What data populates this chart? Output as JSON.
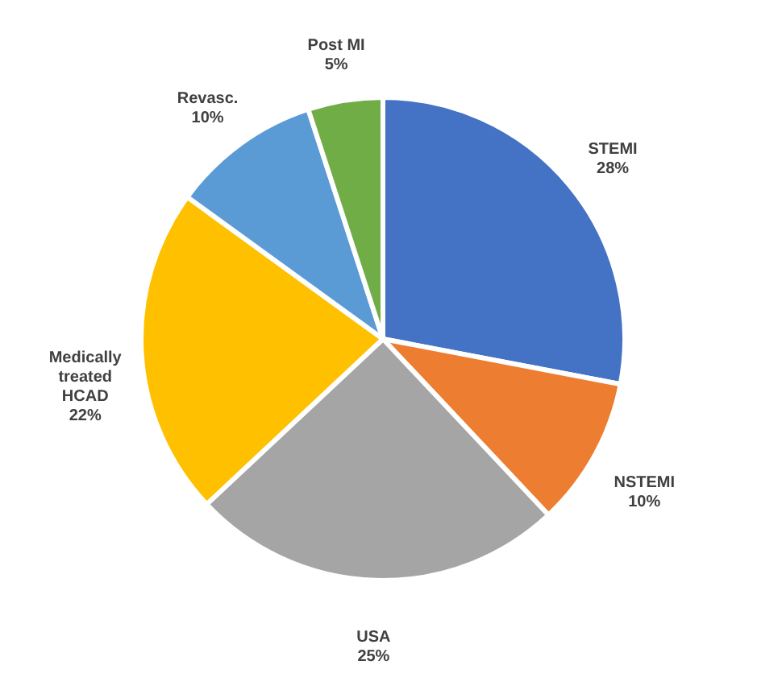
{
  "chart_data": {
    "type": "pie",
    "categories": [
      "STEMI",
      "NSTEMI",
      "USA",
      "Medically treated HCAD",
      "Revasc.",
      "Post MI"
    ],
    "values": [
      28,
      10,
      25,
      22,
      10,
      5
    ],
    "value_labels": [
      "28%",
      "10%",
      "25%",
      "22%",
      "10%",
      "5%"
    ],
    "colors": [
      "#4472c4",
      "#ed7d31",
      "#a5a5a5",
      "#ffc000",
      "#5b9bd5",
      "#70ad47"
    ],
    "legend": false
  }
}
